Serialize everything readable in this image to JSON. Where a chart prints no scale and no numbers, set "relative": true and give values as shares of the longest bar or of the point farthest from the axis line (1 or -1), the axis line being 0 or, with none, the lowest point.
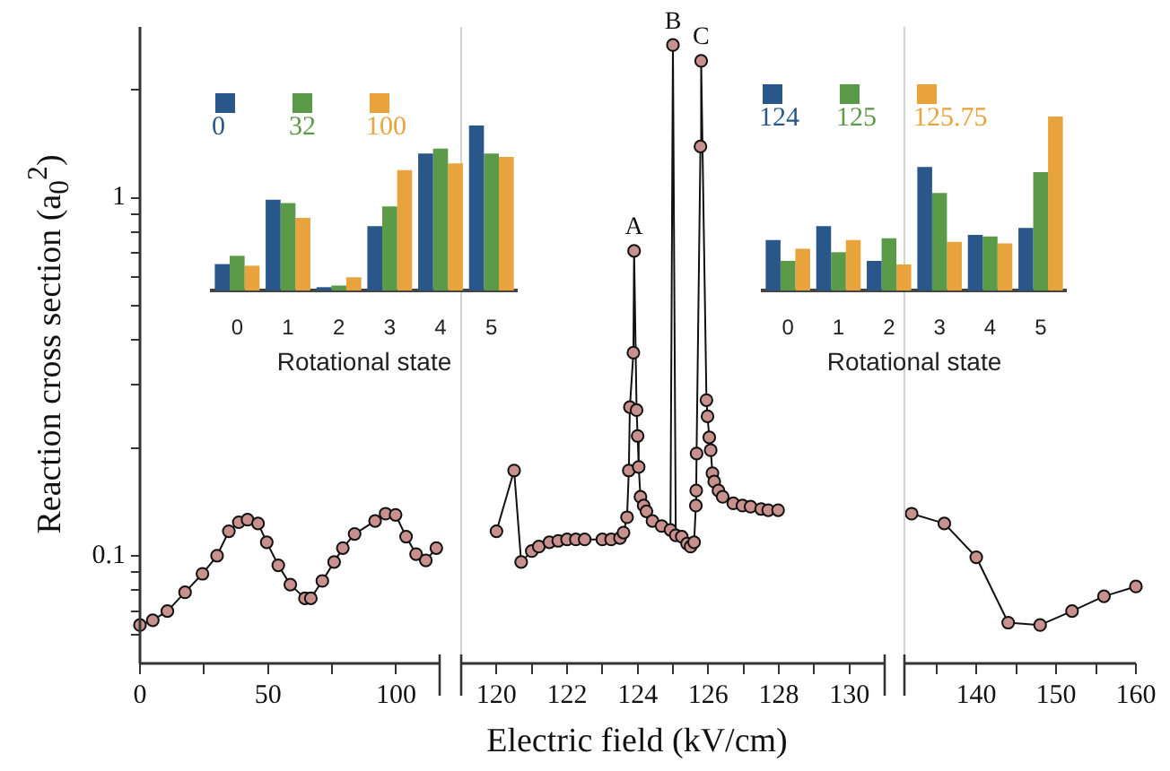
{
  "chart_data": [
    {
      "type": "line",
      "ylabel": "Reaction cross section (a$_{0}$$^{2}$)",
      "marker": "circle",
      "color": "#c8918e",
      "log": true,
      "ylim": [
        0.05,
        3
      ],
      "yticks": [
        {
          "value": 0.06,
          "label": null
        },
        {
          "value": 0.07,
          "label": null
        },
        {
          "value": 0.08,
          "label": null
        },
        {
          "value": 0.09,
          "label": null
        },
        0.1,
        {
          "value": 0.2,
          "label": null
        },
        {
          "value": 0.3,
          "label": null
        },
        {
          "value": 0.4,
          "label": null
        },
        {
          "value": 0.5,
          "label": null
        },
        {
          "value": 0.6,
          "label": null
        },
        {
          "value": 0.7,
          "label": null
        },
        {
          "value": 0.8,
          "label": null
        },
        {
          "value": 0.9,
          "label": null
        },
        1,
        {
          "value": 2,
          "label": null
        }
      ],
      "xlim": [
        0,
        117
      ],
      "xticks": [
        0,
        {
          "value": 25,
          "label": null
        },
        50,
        {
          "value": 75,
          "label": null
        },
        100
      ],
      "x": [
        0,
        5,
        10.7,
        17.6,
        24.4,
        30.1,
        34.7,
        38.6,
        42,
        46.1,
        49.5,
        54,
        58.7,
        64.4,
        66.7,
        71.2,
        75.8,
        79.2,
        83.8,
        91.8,
        95.9,
        99.8,
        103.9,
        107.8,
        111.6,
        115.7
      ],
      "values": [
        0.064,
        0.066,
        0.07,
        0.079,
        0.089,
        0.1,
        0.117,
        0.124,
        0.126,
        0.123,
        0.109,
        0.094,
        0.083,
        0.076,
        0.076,
        0.085,
        0.096,
        0.105,
        0.115,
        0.125,
        0.131,
        0.13,
        0.113,
        0.101,
        0.097,
        0.105
      ]
    },
    {
      "type": "line",
      "xlabel": "Electric field (kV/cm)",
      "marker": "circle",
      "color": "#c8918e",
      "log": true,
      "tick_labels": "x",
      "ylim": [
        0.05,
        3
      ],
      "xlim": [
        119,
        131
      ],
      "xticks": [
        120,
        {
          "value": 121,
          "label": null
        },
        122,
        {
          "value": 123,
          "label": null
        },
        124,
        {
          "value": 125,
          "label": null
        },
        126,
        {
          "value": 127,
          "label": null
        },
        128,
        {
          "value": 129,
          "label": null
        },
        130
      ],
      "x": [
        120,
        120.5,
        120.7,
        121,
        121.2,
        121.5,
        121.75,
        122,
        122.25,
        122.5,
        123,
        123.25,
        123.5,
        123.6,
        123.7,
        123.75,
        123.78,
        123.88,
        123.9,
        123.97,
        124,
        124.03,
        124.08,
        124.17,
        124.25,
        124.42,
        124.68,
        124.93,
        125,
        125.08,
        125.25,
        125.4,
        125.5,
        125.6,
        125.65,
        125.66,
        125.67,
        125.78,
        125.8,
        125.95,
        125.98,
        126.03,
        126.07,
        126.12,
        126.17,
        126.29,
        126.41,
        126.71,
        126.97,
        127.2,
        127.5,
        127.7,
        127.98
      ],
      "values": [
        0.117,
        0.173,
        0.096,
        0.103,
        0.106,
        0.109,
        0.11,
        0.111,
        0.111,
        0.111,
        0.111,
        0.111,
        0.112,
        0.116,
        0.128,
        0.173,
        0.26,
        0.369,
        0.71,
        0.255,
        0.216,
        0.177,
        0.146,
        0.138,
        0.133,
        0.125,
        0.121,
        0.118,
        2.67,
        0.114,
        0.113,
        0.108,
        0.106,
        0.109,
        0.138,
        0.152,
        0.193,
        1.39,
        2.41,
        0.272,
        0.245,
        0.214,
        0.197,
        0.17,
        0.161,
        0.152,
        0.146,
        0.14,
        0.138,
        0.137,
        0.135,
        0.134,
        0.134
      ],
      "annotations": [
        {
          "text": "A",
          "x": 123.9,
          "y": 0.71
        },
        {
          "text": "B",
          "x": 125,
          "y": 2.67
        },
        {
          "text": "C",
          "x": 125.8,
          "y": 2.41
        }
      ]
    },
    {
      "type": "line",
      "marker": "circle",
      "color": "#c8918e",
      "log": true,
      "tick_labels": "x",
      "ylim": [
        0.05,
        3
      ],
      "xlim": [
        131,
        160
      ],
      "xticks": [
        {
          "value": 135,
          "label": null
        },
        140,
        {
          "value": 145,
          "label": null
        },
        150,
        {
          "value": 155,
          "label": null
        },
        160
      ],
      "x": [
        131.9,
        136,
        140,
        144,
        148,
        152,
        156,
        160
      ],
      "values": [
        0.131,
        0.123,
        0.099,
        0.065,
        0.064,
        0.07,
        0.077,
        0.082
      ]
    },
    {
      "type": "bar",
      "relative": true,
      "legend": "top left",
      "xlabel": "Rotational state",
      "categories": [
        "0",
        "1",
        "2",
        "3",
        "4",
        "5"
      ],
      "series": [
        {
          "name": "0",
          "color": "#2a578a",
          "values": [
            0.16,
            0.55,
            0.02,
            0.39,
            0.83,
            1
          ]
        },
        {
          "name": "32",
          "color": "#5b9a48",
          "values": [
            0.21,
            0.53,
            0.03,
            0.51,
            0.86,
            0.83
          ]
        },
        {
          "name": "100",
          "color": "#e8a33c",
          "values": [
            0.15,
            0.44,
            0.08,
            0.73,
            0.77,
            0.81
          ]
        }
      ]
    },
    {
      "type": "bar",
      "relative": true,
      "legend": "top left",
      "xlabel": "Rotational state",
      "categories": [
        "0",
        "1",
        "2",
        "3",
        "4",
        "5"
      ],
      "series": [
        {
          "name": "124",
          "color": "#2a578a",
          "values": [
            0.29,
            0.37,
            0.17,
            0.71,
            0.32,
            0.36
          ]
        },
        {
          "name": "125",
          "color": "#5b9a48",
          "values": [
            0.17,
            0.22,
            0.3,
            0.56,
            0.31,
            0.68
          ]
        },
        {
          "name": "125.75",
          "color": "#e8a33c",
          "values": [
            0.24,
            0.29,
            0.15,
            0.28,
            0.27,
            1
          ]
        }
      ]
    }
  ]
}
